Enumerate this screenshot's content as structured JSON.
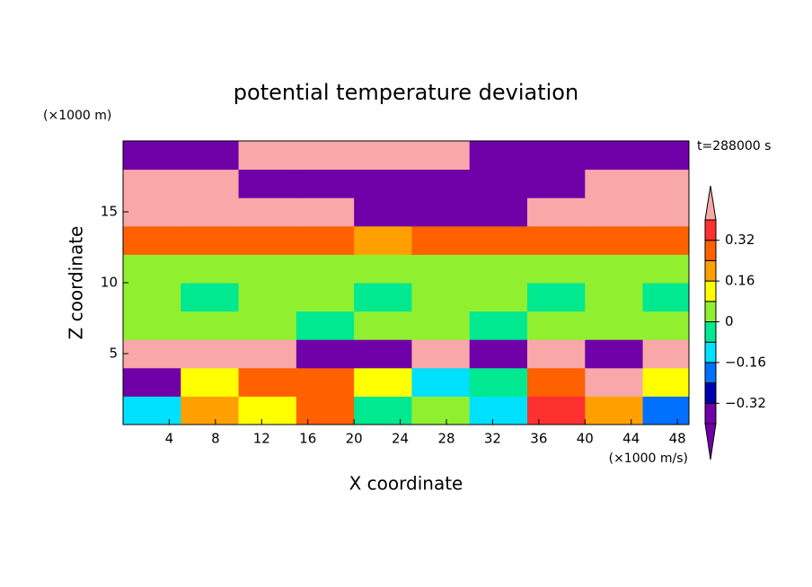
{
  "chart_data": {
    "type": "contour",
    "title": "potential temperature deviation",
    "x_label": "X coordinate",
    "y_label": "Z coordinate",
    "x_unit": "(×1000 m/s)",
    "y_unit": "(×1000 m)",
    "time_label": "t=288000 s",
    "xlim": [
      0,
      49
    ],
    "ylim": [
      0,
      20
    ],
    "xticks": [
      4,
      8,
      12,
      16,
      20,
      24,
      28,
      32,
      36,
      40,
      44,
      48
    ],
    "yticks": [
      5,
      10,
      15
    ],
    "x": [
      2.5,
      7.5,
      12.5,
      17.5,
      22.5,
      27.5,
      32.5,
      37.5,
      42.5,
      47.5
    ],
    "y": [
      1,
      3,
      5,
      7,
      9,
      11,
      13,
      15,
      17,
      19
    ],
    "z": [
      [
        -0.1,
        0.2,
        0.1,
        0.3,
        -0.05,
        0.05,
        -0.1,
        0.35,
        0.2,
        -0.2
      ],
      [
        -0.35,
        0.1,
        0.3,
        0.25,
        0.1,
        -0.1,
        -0.05,
        0.3,
        0.45,
        0.1
      ],
      [
        0.45,
        0.45,
        0.45,
        -0.45,
        -0.45,
        0.45,
        -0.45,
        0.45,
        -0.45,
        0.45
      ],
      [
        0.02,
        0.03,
        0.02,
        -0.03,
        0.02,
        0.03,
        -0.05,
        0.02,
        0.03,
        0.02
      ],
      [
        0.03,
        -0.02,
        0.03,
        0.02,
        -0.03,
        0.02,
        0.03,
        -0.02,
        0.03,
        -0.02
      ],
      [
        0.04,
        0.03,
        0.05,
        0.02,
        0.04,
        0.03,
        0.02,
        0.05,
        0.03,
        0.04
      ],
      [
        0.3,
        0.25,
        0.3,
        0.28,
        0.2,
        0.25,
        0.3,
        0.28,
        0.25,
        0.3
      ],
      [
        0.45,
        0.45,
        0.45,
        0.45,
        -0.45,
        -0.45,
        -0.45,
        0.45,
        0.45,
        0.45
      ],
      [
        0.45,
        0.45,
        -0.45,
        -0.45,
        -0.45,
        -0.45,
        -0.45,
        -0.45,
        0.45,
        0.45
      ],
      [
        -0.45,
        -0.45,
        0.45,
        0.45,
        0.45,
        0.45,
        -0.45,
        -0.45,
        -0.45,
        -0.45
      ]
    ],
    "levels": [
      -0.4,
      -0.32,
      -0.24,
      -0.16,
      -0.08,
      0,
      0.08,
      0.16,
      0.24,
      0.32,
      0.4
    ],
    "colors": [
      "#7000a8",
      "#7000a8",
      "#0000b0",
      "#0070ff",
      "#00e0ff",
      "#00e890",
      "#90f030",
      "#ffff00",
      "#ffa000",
      "#ff6000",
      "#ff3030",
      "#f8a8a8"
    ],
    "colorbar_ticks": [
      0.32,
      0.16,
      0,
      {
        "value": -0.16,
        "label": "−0.16"
      },
      {
        "value": -0.32,
        "label": "−0.32"
      }
    ]
  }
}
